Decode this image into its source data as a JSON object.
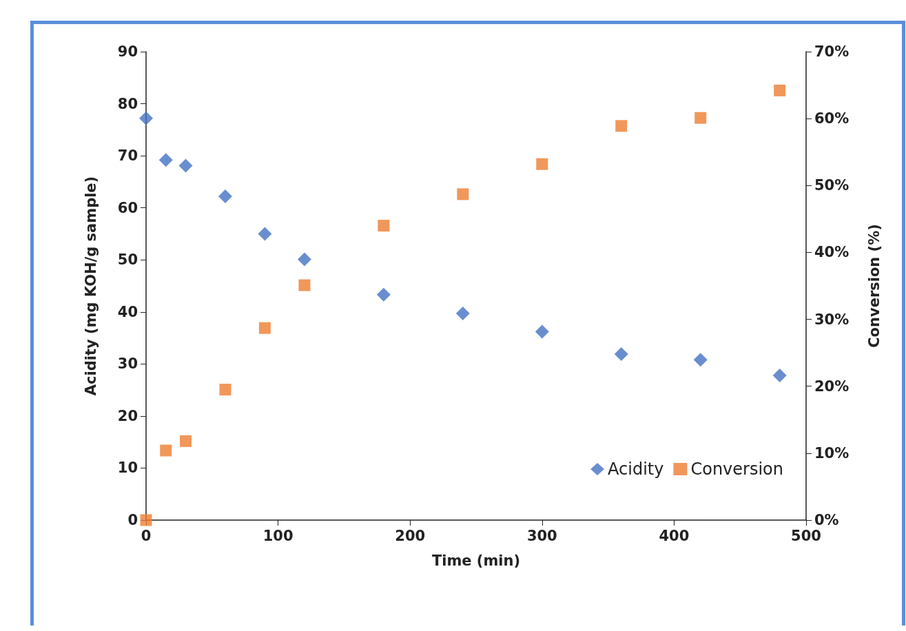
{
  "chart_data": {
    "type": "scatter",
    "xlabel": "Time (min)",
    "ylabel": "Acidity (mg KOH/g sample)",
    "y2label": "Conversion (%)",
    "x": [
      0,
      15,
      30,
      60,
      90,
      120,
      180,
      240,
      300,
      360,
      420,
      480
    ],
    "series": [
      {
        "name": "Acidity",
        "color": "#4472c4",
        "marker": "diamond",
        "values": [
          77.2,
          69.2,
          68.1,
          62.2,
          55.0,
          50.1,
          43.3,
          39.7,
          36.2,
          31.9,
          30.8,
          27.8
        ]
      },
      {
        "name": "Conversion",
        "color": "#ed7d31",
        "marker": "square",
        "axis": "y2",
        "values": [
          0,
          10.4,
          11.8,
          19.5,
          28.7,
          35.1,
          44.0,
          48.7,
          53.2,
          58.9,
          60.1,
          64.2
        ]
      }
    ],
    "xlim": [
      0,
      500
    ],
    "xticks": [
      0,
      100,
      200,
      300,
      400,
      500
    ],
    "ylim": [
      0,
      90
    ],
    "yticks": [
      0,
      10,
      20,
      30,
      40,
      50,
      60,
      70,
      80,
      90
    ],
    "y2lim": [
      0,
      70
    ],
    "y2ticks": [
      {
        "value": 0,
        "label": "0%"
      },
      {
        "value": 10,
        "label": "10%"
      },
      {
        "value": 20,
        "label": "20%"
      },
      {
        "value": 30,
        "label": "30%"
      },
      {
        "value": 40,
        "label": "40%"
      },
      {
        "value": 50,
        "label": "50%"
      },
      {
        "value": 60,
        "label": "60%"
      },
      {
        "value": 70,
        "label": "70%"
      }
    ],
    "grid": false,
    "legend": "bottom right"
  }
}
